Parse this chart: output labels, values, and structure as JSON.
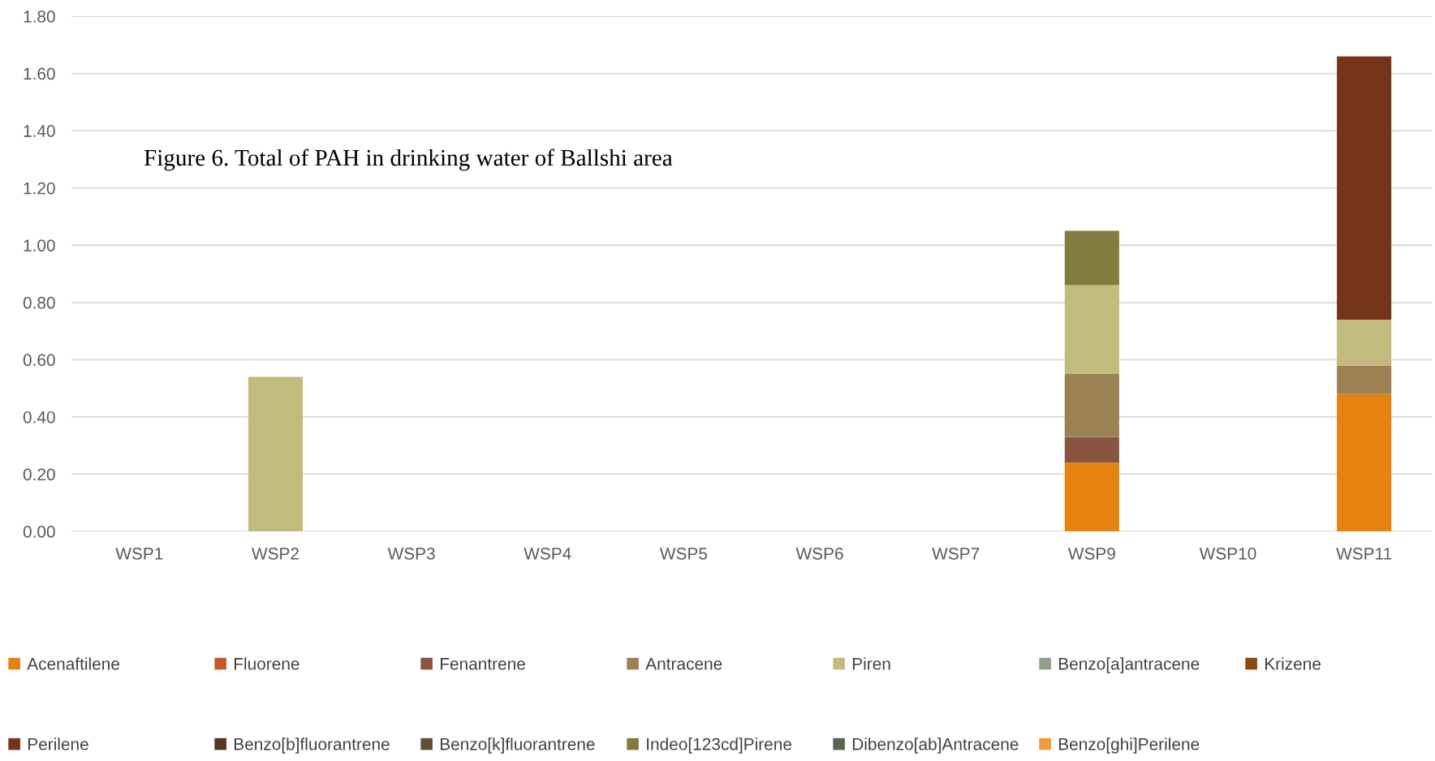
{
  "chart_data": {
    "type": "bar",
    "title": "Figure 6. Total of PAH in drinking water of Ballshi area",
    "categories": [
      "WSP1",
      "WSP2",
      "WSP3",
      "WSP4",
      "WSP5",
      "WSP6",
      "WSP7",
      "WSP9",
      "WSP10",
      "WSP11"
    ],
    "stacked": true,
    "ylim": [
      0,
      1.8
    ],
    "yticks": [
      {
        "value": 0,
        "label": "0.00"
      },
      {
        "value": 0.2,
        "label": "0.20"
      },
      {
        "value": 0.4,
        "label": "0.40"
      },
      {
        "value": 0.6,
        "label": "0.60"
      },
      {
        "value": 0.8,
        "label": "0.80"
      },
      {
        "value": 1.0,
        "label": "1.00"
      },
      {
        "value": 1.2,
        "label": "1.20"
      },
      {
        "value": 1.4,
        "label": "1.40"
      },
      {
        "value": 1.6,
        "label": "1.60"
      },
      {
        "value": 1.8,
        "label": "1.80"
      }
    ],
    "grid": "y",
    "legend": "bottom",
    "series": [
      {
        "name": "Acenaftilene",
        "color": "#e6820f",
        "values": [
          0,
          0,
          0,
          0,
          0,
          0,
          0,
          0.24,
          0,
          0.48
        ]
      },
      {
        "name": "Fluorene",
        "color": "#c55a28",
        "values": [
          0,
          0,
          0,
          0,
          0,
          0,
          0,
          0,
          0,
          0
        ]
      },
      {
        "name": "Fenantrene",
        "color": "#875540",
        "values": [
          0,
          0,
          0,
          0,
          0,
          0,
          0,
          0.09,
          0,
          0
        ]
      },
      {
        "name": "Antracene",
        "color": "#9c8155",
        "values": [
          0,
          0,
          0,
          0,
          0,
          0,
          0,
          0.22,
          0,
          0.1
        ]
      },
      {
        "name": "Piren",
        "color": "#c1bb7e",
        "values": [
          0,
          0.54,
          0,
          0,
          0,
          0,
          0,
          0.31,
          0,
          0.16
        ]
      },
      {
        "name": "Benzo[a]antracene",
        "color": "#8f9e85",
        "values": [
          0,
          0,
          0,
          0,
          0,
          0,
          0,
          0,
          0,
          0
        ]
      },
      {
        "name": "Krizene",
        "color": "#8b4a0f",
        "values": [
          0,
          0,
          0,
          0,
          0,
          0,
          0,
          0,
          0,
          0
        ]
      },
      {
        "name": "Perilene",
        "color": "#73341a",
        "values": [
          0,
          0,
          0,
          0,
          0,
          0,
          0,
          0,
          0,
          0.92
        ]
      },
      {
        "name": "Benzo[b]fluorantrene",
        "color": "#583424",
        "values": [
          0,
          0,
          0,
          0,
          0,
          0,
          0,
          0,
          0,
          0
        ]
      },
      {
        "name": "Benzo[k]fluorantrene",
        "color": "#5e5034",
        "values": [
          0,
          0,
          0,
          0,
          0,
          0,
          0,
          0,
          0,
          0
        ]
      },
      {
        "name": "Indeo[123cd]Pirene",
        "color": "#817c3d",
        "values": [
          0,
          0,
          0,
          0,
          0,
          0,
          0,
          0.19,
          0,
          0
        ]
      },
      {
        "name": "Dibenzo[ab]Antracene",
        "color": "#59654f",
        "values": [
          0,
          0,
          0,
          0,
          0,
          0,
          0,
          0,
          0,
          0
        ]
      },
      {
        "name": "Benzo[ghi]Perilene",
        "color": "#f09a3a",
        "values": [
          0,
          0,
          0,
          0,
          0,
          0,
          0,
          0,
          0,
          0
        ]
      }
    ]
  }
}
